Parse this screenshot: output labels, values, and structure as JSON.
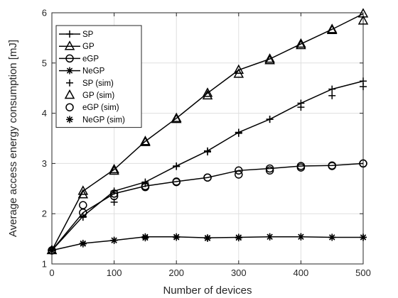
{
  "chart_data": {
    "type": "line",
    "title": "",
    "xlabel": "Number of devices",
    "ylabel": "Average access energy consumption [mJ]",
    "xlim": [
      0,
      500
    ],
    "ylim": [
      1,
      6
    ],
    "xticks": [
      0,
      100,
      200,
      300,
      400,
      500
    ],
    "yticks": [
      1,
      2,
      3,
      4,
      5,
      6
    ],
    "grid": true,
    "legend_position": "top-left",
    "series": [
      {
        "name": "SP",
        "kind": "line",
        "marker": "plus",
        "x": [
          0,
          50,
          100,
          150,
          200,
          250,
          300,
          350,
          400,
          450,
          500
        ],
        "y": [
          1.27,
          1.95,
          2.45,
          2.63,
          2.95,
          3.25,
          3.62,
          3.88,
          4.2,
          4.48,
          4.64
        ]
      },
      {
        "name": "GP",
        "kind": "line",
        "marker": "triangle",
        "x": [
          0,
          50,
          100,
          150,
          200,
          250,
          300,
          350,
          400,
          450,
          500
        ],
        "y": [
          1.27,
          2.45,
          2.88,
          3.44,
          3.9,
          4.4,
          4.86,
          5.08,
          5.38,
          5.67,
          5.98
        ]
      },
      {
        "name": "eGP",
        "kind": "line",
        "marker": "circle",
        "x": [
          0,
          50,
          100,
          150,
          200,
          250,
          300,
          350,
          400,
          450,
          500
        ],
        "y": [
          1.27,
          2.02,
          2.4,
          2.55,
          2.64,
          2.72,
          2.86,
          2.9,
          2.95,
          2.96,
          3.0
        ]
      },
      {
        "name": "NeGP",
        "kind": "line",
        "marker": "asterisk",
        "x": [
          0,
          50,
          100,
          150,
          200,
          250,
          300,
          350,
          400,
          450,
          500
        ],
        "y": [
          1.27,
          1.41,
          1.47,
          1.54,
          1.54,
          1.52,
          1.53,
          1.54,
          1.54,
          1.53,
          1.53
        ]
      },
      {
        "name": "SP (sim)",
        "kind": "marker",
        "marker": "plus",
        "x": [
          0,
          50,
          100,
          150,
          200,
          250,
          300,
          350,
          400,
          450,
          500
        ],
        "y": [
          1.27,
          1.93,
          2.23,
          2.6,
          2.94,
          3.23,
          3.6,
          3.88,
          4.12,
          4.35,
          4.53
        ]
      },
      {
        "name": "GP (sim)",
        "kind": "marker",
        "marker": "triangle",
        "x": [
          0,
          50,
          100,
          150,
          200,
          250,
          300,
          350,
          400,
          450,
          500
        ],
        "y": [
          1.27,
          2.38,
          2.85,
          3.42,
          3.88,
          4.35,
          4.78,
          5.05,
          5.35,
          5.65,
          5.84
        ]
      },
      {
        "name": "eGP (sim)",
        "kind": "marker",
        "marker": "circle",
        "x": [
          0,
          50,
          100,
          150,
          200,
          250,
          300,
          350,
          400,
          450,
          500
        ],
        "y": [
          1.27,
          2.17,
          2.35,
          2.53,
          2.63,
          2.72,
          2.78,
          2.86,
          2.92,
          2.95,
          3.0
        ]
      },
      {
        "name": "NeGP (sim)",
        "kind": "marker",
        "marker": "asterisk",
        "x": [
          0,
          50,
          100,
          150,
          200,
          250,
          300,
          350,
          400,
          450,
          500
        ],
        "y": [
          1.27,
          1.4,
          1.47,
          1.52,
          1.53,
          1.51,
          1.52,
          1.54,
          1.54,
          1.53,
          1.53
        ]
      }
    ]
  }
}
